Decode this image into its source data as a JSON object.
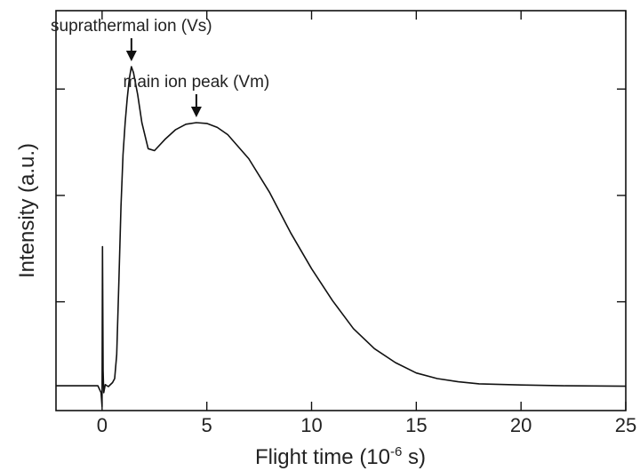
{
  "chart_data": {
    "type": "line",
    "title": "",
    "xlabel_prefix": "Flight time (10",
    "xlabel_exp": "-6",
    "xlabel_suffix": " s)",
    "ylabel": "Intensity (a.u.)",
    "xlim": [
      -2.2,
      25
    ],
    "ylim": [
      0,
      1.0
    ],
    "x_ticks": [
      0,
      5,
      10,
      15,
      20,
      25
    ],
    "x_tick_labels": [
      "0",
      "5",
      "10",
      "15",
      "20",
      "25"
    ],
    "y_ticks": [
      0.272,
      0.538,
      0.804
    ],
    "y_tick_labels": [],
    "grid": false,
    "series": [
      {
        "x": [
          -2.2,
          -0.2,
          -0.05,
          0.0,
          0.02,
          0.05,
          0.08,
          0.15,
          0.3,
          0.5,
          0.6,
          0.7,
          0.8,
          0.9,
          1.0,
          1.1,
          1.2,
          1.3,
          1.4,
          1.5,
          1.7,
          1.9,
          2.2,
          2.5,
          3.0,
          3.5,
          4.0,
          4.5,
          5.0,
          5.5,
          6.0,
          7.0,
          8.0,
          9.0,
          10.0,
          11.0,
          12.0,
          13.0,
          14.0,
          15.0,
          16.0,
          17.0,
          18.0,
          20.0,
          22.0,
          25.0
        ],
        "y": [
          0.062,
          0.062,
          0.045,
          0.01,
          0.41,
          0.1,
          0.045,
          0.065,
          0.06,
          0.07,
          0.08,
          0.14,
          0.32,
          0.51,
          0.64,
          0.72,
          0.78,
          0.83,
          0.86,
          0.845,
          0.79,
          0.72,
          0.655,
          0.65,
          0.678,
          0.702,
          0.716,
          0.72,
          0.718,
          0.708,
          0.69,
          0.63,
          0.545,
          0.445,
          0.355,
          0.275,
          0.205,
          0.155,
          0.12,
          0.094,
          0.08,
          0.072,
          0.067,
          0.064,
          0.062,
          0.061
        ]
      }
    ],
    "annotations": [
      {
        "label": "suprathermal ion (Vs)",
        "x": 1.4,
        "y": 0.86
      },
      {
        "label": "main ion peak (Vm)",
        "x": 4.5,
        "y": 0.72
      }
    ]
  }
}
